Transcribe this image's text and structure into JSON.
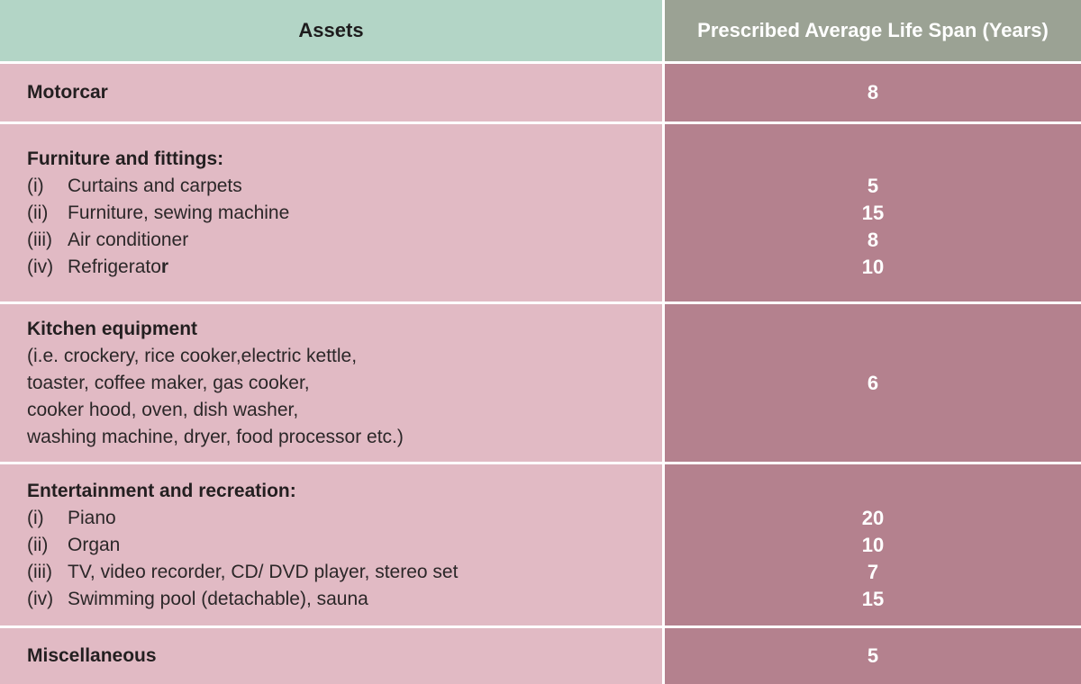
{
  "table": {
    "header": {
      "assets": "Assets",
      "lifespan": "Prescribed Average Life Span (Years)"
    },
    "colors": {
      "header_left_bg": "#b3d5c6",
      "header_right_bg": "#9ba294",
      "body_left_bg": "#e1bac4",
      "body_right_bg": "#b4818e",
      "divider": "#ffffff",
      "dark_text": "#231f20",
      "light_text": "#ffffff"
    },
    "rows": [
      {
        "title": "Motorcar",
        "value": "8"
      },
      {
        "title": "Furniture and fittings:",
        "items": [
          {
            "num": "(i)",
            "text": "Curtains and carpets",
            "value": "5"
          },
          {
            "num": "(ii)",
            "text": "Furniture, sewing machine",
            "value": "15"
          },
          {
            "num": "(iii)",
            "text": "Air conditioner",
            "value": "8"
          },
          {
            "num": "(iv)",
            "text": "Refrigerato",
            "text_bold": "r",
            "value": "10"
          }
        ]
      },
      {
        "title": "Kitchen equipment",
        "detail_lines": [
          "(i.e. crockery, rice cooker,electric kettle,",
          "toaster, coffee maker, gas cooker,",
          "cooker hood, oven, dish washer,",
          "washing machine, dryer, food processor etc.)"
        ],
        "value": "6"
      },
      {
        "title": "Entertainment and recreation:",
        "items": [
          {
            "num": "(i)",
            "text": "Piano",
            "value": "20"
          },
          {
            "num": "(ii)",
            "text": "Organ",
            "value": "10"
          },
          {
            "num": "(iii)",
            "text": "TV, video recorder, CD/ DVD player, stereo set",
            "value": "7"
          },
          {
            "num": "(iv)",
            "text": "Swimming pool (detachable), sauna",
            "value": "15"
          }
        ]
      },
      {
        "title": "Miscellaneous",
        "value": "5"
      }
    ]
  }
}
